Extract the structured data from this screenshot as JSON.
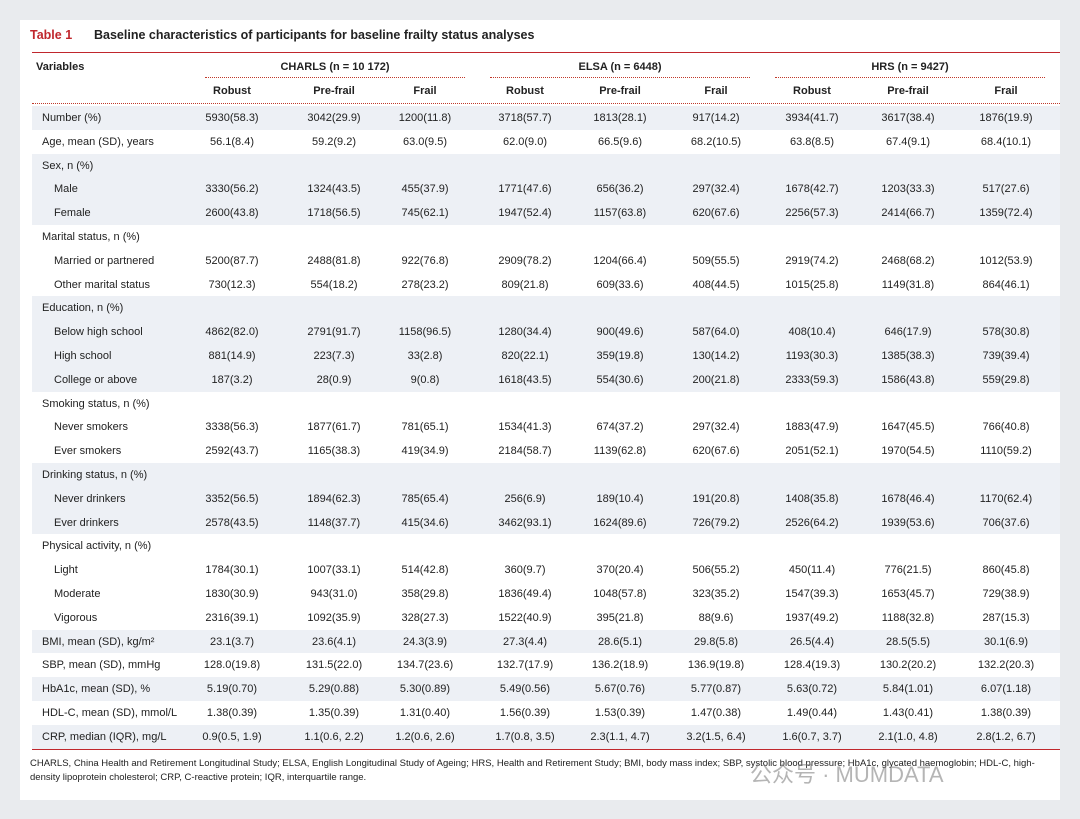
{
  "header": {
    "label": "Table 1",
    "title": "Baseline characteristics of participants for baseline frailty status analyses"
  },
  "table": {
    "columns": {
      "variables": "Variables",
      "groups": [
        "CHARLS (n = 10 172)",
        "ELSA (n = 6448)",
        "HRS (n = 9427)"
      ],
      "subgroups": [
        "Robust",
        "Pre-frail",
        "Frail",
        "Robust",
        "Pre-frail",
        "Frail",
        "Robust",
        "Pre-frail",
        "Frail"
      ]
    },
    "rows": [
      {
        "label": "Number (%)",
        "cells": [
          "5930(58.3)",
          "3042(29.9)",
          "1200(11.8)",
          "3718(57.7)",
          "1813(28.1)",
          "917(14.2)",
          "3934(41.7)",
          "3617(38.4)",
          "1876(19.9)"
        ]
      },
      {
        "label": "Age, mean (SD), years",
        "cells": [
          "56.1(8.4)",
          "59.2(9.2)",
          "63.0(9.5)",
          "62.0(9.0)",
          "66.5(9.6)",
          "68.2(10.5)",
          "63.8(8.5)",
          "67.4(9.1)",
          "68.4(10.1)"
        ]
      },
      {
        "label": "Sex, n (%)",
        "items": [
          {
            "label": "Male",
            "cells": [
              "3330(56.2)",
              "1324(43.5)",
              "455(37.9)",
              "1771(47.6)",
              "656(36.2)",
              "297(32.4)",
              "1678(42.7)",
              "1203(33.3)",
              "517(27.6)"
            ]
          },
          {
            "label": "Female",
            "cells": [
              "2600(43.8)",
              "1718(56.5)",
              "745(62.1)",
              "1947(52.4)",
              "1157(63.8)",
              "620(67.6)",
              "2256(57.3)",
              "2414(66.7)",
              "1359(72.4)"
            ]
          }
        ]
      },
      {
        "label": "Marital status, n (%)",
        "items": [
          {
            "label": "Married or partnered",
            "cells": [
              "5200(87.7)",
              "2488(81.8)",
              "922(76.8)",
              "2909(78.2)",
              "1204(66.4)",
              "509(55.5)",
              "2919(74.2)",
              "2468(68.2)",
              "1012(53.9)"
            ]
          },
          {
            "label": "Other marital status",
            "cells": [
              "730(12.3)",
              "554(18.2)",
              "278(23.2)",
              "809(21.8)",
              "609(33.6)",
              "408(44.5)",
              "1015(25.8)",
              "1149(31.8)",
              "864(46.1)"
            ]
          }
        ]
      },
      {
        "label": "Education, n (%)",
        "items": [
          {
            "label": "Below high school",
            "cells": [
              "4862(82.0)",
              "2791(91.7)",
              "1158(96.5)",
              "1280(34.4)",
              "900(49.6)",
              "587(64.0)",
              "408(10.4)",
              "646(17.9)",
              "578(30.8)"
            ]
          },
          {
            "label": "High school",
            "cells": [
              "881(14.9)",
              "223(7.3)",
              "33(2.8)",
              "820(22.1)",
              "359(19.8)",
              "130(14.2)",
              "1193(30.3)",
              "1385(38.3)",
              "739(39.4)"
            ]
          },
          {
            "label": "College or above",
            "cells": [
              "187(3.2)",
              "28(0.9)",
              "9(0.8)",
              "1618(43.5)",
              "554(30.6)",
              "200(21.8)",
              "2333(59.3)",
              "1586(43.8)",
              "559(29.8)"
            ]
          }
        ]
      },
      {
        "label": "Smoking status, n (%)",
        "items": [
          {
            "label": "Never smokers",
            "cells": [
              "3338(56.3)",
              "1877(61.7)",
              "781(65.1)",
              "1534(41.3)",
              "674(37.2)",
              "297(32.4)",
              "1883(47.9)",
              "1647(45.5)",
              "766(40.8)"
            ]
          },
          {
            "label": "Ever smokers",
            "cells": [
              "2592(43.7)",
              "1165(38.3)",
              "419(34.9)",
              "2184(58.7)",
              "1139(62.8)",
              "620(67.6)",
              "2051(52.1)",
              "1970(54.5)",
              "1110(59.2)"
            ]
          }
        ]
      },
      {
        "label": "Drinking status, n (%)",
        "items": [
          {
            "label": "Never drinkers",
            "cells": [
              "3352(56.5)",
              "1894(62.3)",
              "785(65.4)",
              "256(6.9)",
              "189(10.4)",
              "191(20.8)",
              "1408(35.8)",
              "1678(46.4)",
              "1170(62.4)"
            ]
          },
          {
            "label": "Ever drinkers",
            "cells": [
              "2578(43.5)",
              "1148(37.7)",
              "415(34.6)",
              "3462(93.1)",
              "1624(89.6)",
              "726(79.2)",
              "2526(64.2)",
              "1939(53.6)",
              "706(37.6)"
            ]
          }
        ]
      },
      {
        "label": "Physical activity, n (%)",
        "items": [
          {
            "label": "Light",
            "cells": [
              "1784(30.1)",
              "1007(33.1)",
              "514(42.8)",
              "360(9.7)",
              "370(20.4)",
              "506(55.2)",
              "450(11.4)",
              "776(21.5)",
              "860(45.8)"
            ]
          },
          {
            "label": "Moderate",
            "cells": [
              "1830(30.9)",
              "943(31.0)",
              "358(29.8)",
              "1836(49.4)",
              "1048(57.8)",
              "323(35.2)",
              "1547(39.3)",
              "1653(45.7)",
              "729(38.9)"
            ]
          },
          {
            "label": "Vigorous",
            "cells": [
              "2316(39.1)",
              "1092(35.9)",
              "328(27.3)",
              "1522(40.9)",
              "395(21.8)",
              "88(9.6)",
              "1937(49.2)",
              "1188(32.8)",
              "287(15.3)"
            ]
          }
        ]
      },
      {
        "label": "BMI, mean (SD), kg/m²",
        "cells": [
          "23.1(3.7)",
          "23.6(4.1)",
          "24.3(3.9)",
          "27.3(4.4)",
          "28.6(5.1)",
          "29.8(5.8)",
          "26.5(4.4)",
          "28.5(5.5)",
          "30.1(6.9)"
        ]
      },
      {
        "label": "SBP, mean (SD), mmHg",
        "cells": [
          "128.0(19.8)",
          "131.5(22.0)",
          "134.7(23.6)",
          "132.7(17.9)",
          "136.2(18.9)",
          "136.9(19.8)",
          "128.4(19.3)",
          "130.2(20.2)",
          "132.2(20.3)"
        ]
      },
      {
        "label": "HbA1c, mean (SD), %",
        "cells": [
          "5.19(0.70)",
          "5.29(0.88)",
          "5.30(0.89)",
          "5.49(0.56)",
          "5.67(0.76)",
          "5.77(0.87)",
          "5.63(0.72)",
          "5.84(1.01)",
          "6.07(1.18)"
        ]
      },
      {
        "label": "HDL-C, mean (SD), mmol/L",
        "cells": [
          "1.38(0.39)",
          "1.35(0.39)",
          "1.31(0.40)",
          "1.56(0.39)",
          "1.53(0.39)",
          "1.47(0.38)",
          "1.49(0.44)",
          "1.43(0.41)",
          "1.38(0.39)"
        ]
      },
      {
        "label": "CRP, median (IQR), mg/L",
        "cells": [
          "0.9(0.5, 1.9)",
          "1.1(0.6, 2.2)",
          "1.2(0.6, 2.6)",
          "1.7(0.8, 3.5)",
          "2.3(1.1, 4.7)",
          "3.2(1.5, 6.4)",
          "1.6(0.7, 3.7)",
          "2.1(1.0, 4.8)",
          "2.8(1.2, 6.7)"
        ]
      }
    ]
  },
  "footnote": "CHARLS, China Health and Retirement Longitudinal Study; ELSA, English Longitudinal Study of Ageing; HRS, Health and Retirement Study; BMI, body mass index; SBP, systolic blood pressure; HbA1c, glycated haemoglobin; HDL-C, high-density lipoprotein cholesterol; CRP, C-reactive protein; IQR, interquartile range.",
  "watermark": "公众号 · MUMDATA"
}
